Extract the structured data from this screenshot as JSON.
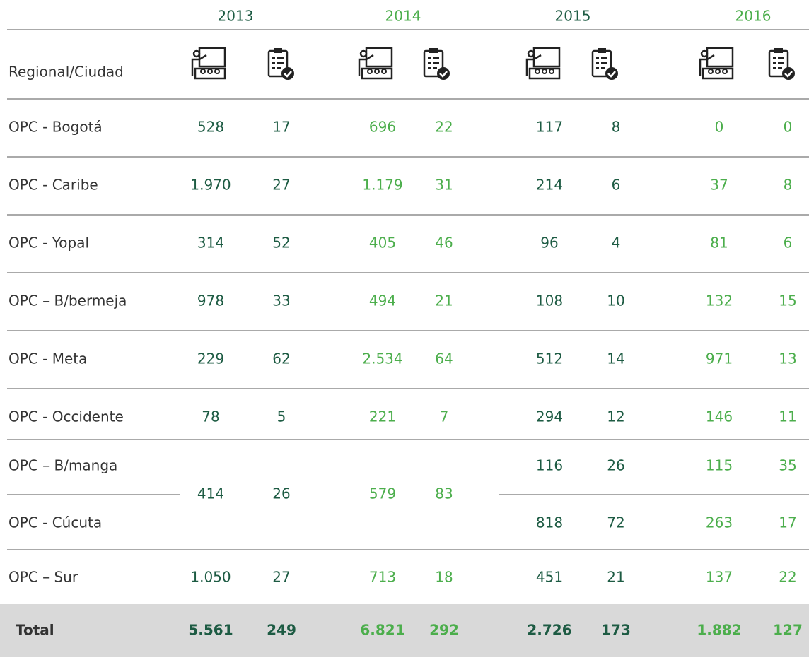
{
  "header": {
    "years": [
      "2013",
      "2014",
      "2015",
      "2016"
    ],
    "label": "Regional/Ciudad"
  },
  "rows": [
    {
      "name": "OPC - Bogotá",
      "values": [
        "528",
        "17",
        "696",
        "22",
        "117",
        "8",
        "0",
        "0"
      ]
    },
    {
      "name": "OPC - Caribe",
      "values": [
        "1.970",
        "27",
        "1.179",
        "31",
        "214",
        "6",
        "37",
        "8"
      ]
    },
    {
      "name": "OPC - Yopal",
      "values": [
        "314",
        "52",
        "405",
        "46",
        "96",
        "4",
        "81",
        "6"
      ]
    },
    {
      "name": "OPC – B/bermeja",
      "values": [
        "978",
        "33",
        "494",
        "21",
        "108",
        "10",
        "132",
        "15"
      ]
    },
    {
      "name": "OPC - Meta",
      "values": [
        "229",
        "62",
        "2.534",
        "64",
        "512",
        "14",
        "971",
        "13"
      ]
    },
    {
      "name": "OPC - Occidente",
      "values": [
        "78",
        "5",
        "221",
        "7",
        "294",
        "12",
        "146",
        "11"
      ]
    }
  ],
  "group": {
    "values": [
      "414",
      "26",
      "579",
      "83"
    ],
    "rows": [
      {
        "name": "OPC – B/manga",
        "values": [
          "116",
          "26",
          "115",
          "35"
        ]
      },
      {
        "name": "OPC - Cúcuta",
        "values": [
          "818",
          "72",
          "263",
          "17"
        ]
      }
    ]
  },
  "last": {
    "name": "OPC – Sur",
    "values": [
      "1.050",
      "27",
      "713",
      "18",
      "451",
      "21",
      "137",
      "22"
    ]
  },
  "total": {
    "label": "Total",
    "values": [
      "5.561",
      "249",
      "6.821",
      "292",
      "2.726",
      "173",
      "1.882",
      "127"
    ]
  }
}
